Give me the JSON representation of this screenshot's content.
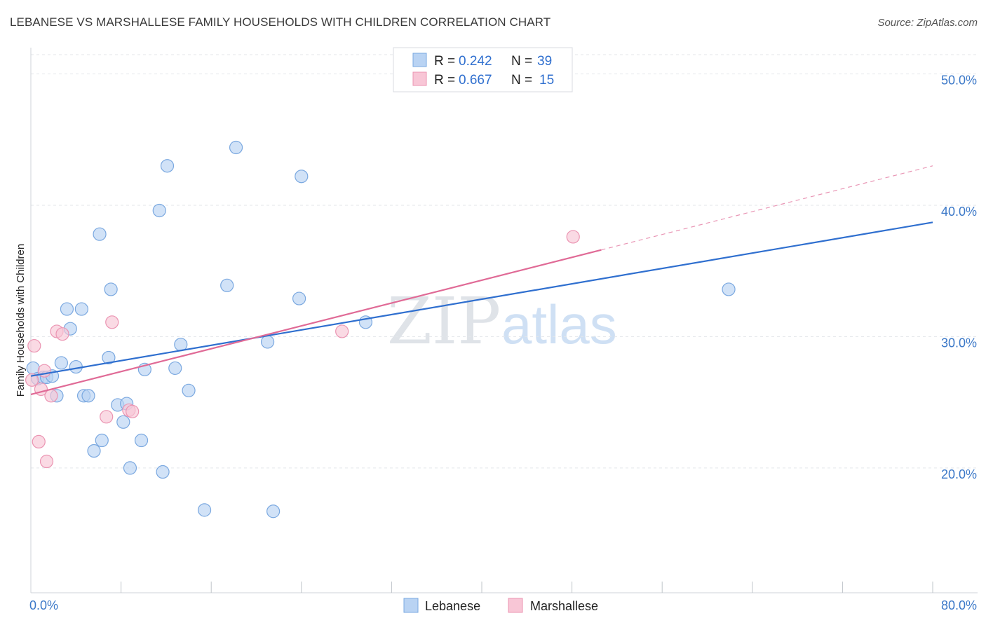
{
  "header": {
    "title": "LEBANESE VS MARSHALLESE FAMILY HOUSEHOLDS WITH CHILDREN CORRELATION CHART",
    "source": "Source: ZipAtlas.com"
  },
  "watermark": {
    "zip": "ZIP",
    "atlas": "atlas"
  },
  "legend": {
    "rows": [
      {
        "r_label": "R =",
        "r_value": "0.242",
        "n_label": "N =",
        "n_value": "39"
      },
      {
        "r_label": "R =",
        "r_value": "0.667",
        "n_label": "N =",
        "n_value": "15"
      }
    ]
  },
  "bottom_legend": {
    "items": [
      "Lebanese",
      "Marshallese"
    ]
  },
  "colors": {
    "lebanese_fill": "#b9d3f3",
    "lebanese_stroke": "#7aa8e0",
    "lebanese_line": "#2f6fcf",
    "marshallese_fill": "#f8c6d6",
    "marshallese_stroke": "#eb94b2",
    "marshallese_line": "#e06a96",
    "tick_color": "#3b78c8"
  },
  "chart_data": {
    "type": "scatter",
    "title": "LEBANESE VS MARSHALLESE FAMILY HOUSEHOLDS WITH CHILDREN CORRELATION CHART",
    "xlabel": "",
    "ylabel": "Family Households with Children",
    "xlim": [
      0,
      80
    ],
    "ylim": [
      10.5,
      52
    ],
    "x_tick_labels": [
      "0.0%",
      "80.0%"
    ],
    "y_ticks": [
      20,
      30,
      40,
      50
    ],
    "y_tick_labels": [
      "20.0%",
      "30.0%",
      "40.0%",
      "50.0%"
    ],
    "grid": true,
    "legend_position": "top-center",
    "series": [
      {
        "name": "Lebanese",
        "r": 0.242,
        "n": 39,
        "points": [
          [
            0.2,
            27.6
          ],
          [
            0.6,
            26.8
          ],
          [
            1.1,
            26.9
          ],
          [
            1.4,
            26.9
          ],
          [
            1.9,
            27.0
          ],
          [
            2.3,
            25.5
          ],
          [
            2.7,
            28.0
          ],
          [
            3.2,
            32.1
          ],
          [
            3.5,
            30.6
          ],
          [
            4.0,
            27.7
          ],
          [
            4.5,
            32.1
          ],
          [
            4.7,
            25.5
          ],
          [
            5.1,
            25.5
          ],
          [
            5.6,
            21.3
          ],
          [
            6.1,
            37.8
          ],
          [
            6.3,
            22.1
          ],
          [
            6.9,
            28.4
          ],
          [
            7.1,
            33.6
          ],
          [
            7.7,
            24.8
          ],
          [
            8.2,
            23.5
          ],
          [
            8.5,
            24.9
          ],
          [
            8.8,
            20.0
          ],
          [
            9.8,
            22.1
          ],
          [
            10.1,
            27.5
          ],
          [
            11.4,
            39.6
          ],
          [
            11.7,
            19.7
          ],
          [
            12.1,
            43.0
          ],
          [
            12.8,
            27.6
          ],
          [
            13.3,
            29.4
          ],
          [
            14.0,
            25.9
          ],
          [
            15.4,
            16.8
          ],
          [
            17.4,
            33.9
          ],
          [
            18.2,
            44.4
          ],
          [
            21.0,
            29.6
          ],
          [
            21.5,
            16.7
          ],
          [
            23.8,
            32.9
          ],
          [
            24.0,
            42.2
          ],
          [
            29.7,
            31.1
          ],
          [
            61.9,
            33.6
          ]
        ],
        "trend": {
          "x": [
            0,
            80
          ],
          "y": [
            27.0,
            38.7
          ]
        }
      },
      {
        "name": "Marshallese",
        "r": 0.667,
        "n": 15,
        "points": [
          [
            0.3,
            29.3
          ],
          [
            0.7,
            22.0
          ],
          [
            0.9,
            26.0
          ],
          [
            1.2,
            27.4
          ],
          [
            1.4,
            20.5
          ],
          [
            1.8,
            25.5
          ],
          [
            2.3,
            30.4
          ],
          [
            2.8,
            30.2
          ],
          [
            6.7,
            23.9
          ],
          [
            7.2,
            31.1
          ],
          [
            8.7,
            24.4
          ],
          [
            9.0,
            24.3
          ],
          [
            27.6,
            30.4
          ],
          [
            48.1,
            37.6
          ],
          [
            0.1,
            26.7
          ]
        ],
        "trend": {
          "x": [
            0,
            50.6
          ],
          "y": [
            25.6,
            36.6
          ]
        },
        "trend_dashed": {
          "x": [
            50.6,
            80
          ],
          "y": [
            36.6,
            43.0
          ]
        }
      }
    ]
  }
}
